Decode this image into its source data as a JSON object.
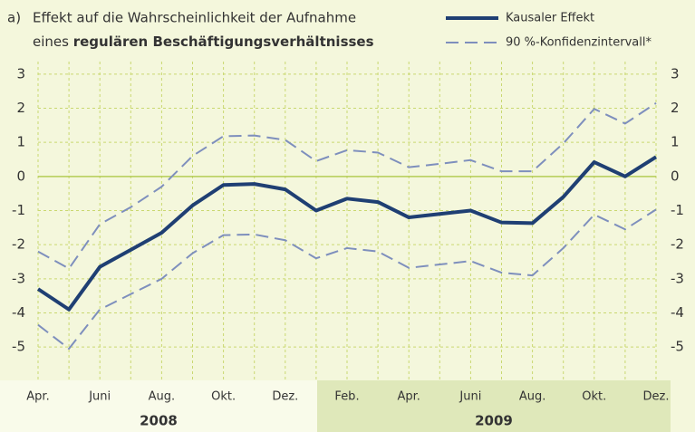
{
  "chart_data": {
    "type": "line",
    "title_prefix": "a)",
    "title_line1": "Effekt auf die Wahrscheinlichkeit der Aufnahme",
    "title_line2": "eines",
    "title_line2_bold": "regulären Beschäftigungsverhältnisses",
    "categories": [
      "Apr.",
      null,
      "Juni",
      null,
      "Aug.",
      null,
      "Okt.",
      null,
      "Dez.",
      null,
      "Feb.",
      null,
      "Apr.",
      null,
      "Juni",
      null,
      "Aug.",
      null,
      "Okt.",
      null,
      "Dez."
    ],
    "years": [
      "2008",
      "2009"
    ],
    "series": [
      {
        "name": "Kausaler Effekt",
        "color": "#1f3f73",
        "style": "solid",
        "values": [
          -3.3,
          -3.9,
          -2.65,
          -2.15,
          -1.65,
          -0.85,
          -0.25,
          -0.22,
          -0.38,
          -1.0,
          -0.65,
          -0.75,
          -1.2,
          -1.1,
          -1.0,
          -1.35,
          -1.37,
          -0.6,
          0.42,
          0.0,
          0.57
        ]
      },
      {
        "name": "90 %-Konfidenzintervall*",
        "color": "#7e8fbd",
        "style": "dashed",
        "values": [
          -2.2,
          -2.7,
          -1.4,
          -0.9,
          -0.3,
          0.6,
          1.18,
          1.2,
          1.07,
          0.45,
          0.77,
          0.7,
          0.27,
          0.37,
          0.48,
          0.15,
          0.15,
          0.97,
          1.98,
          1.55,
          2.15
        ]
      },
      {
        "color": "#7e8fbd",
        "style": "dashed",
        "values": [
          -4.35,
          -5.05,
          -3.9,
          -3.45,
          -3.0,
          -2.25,
          -1.72,
          -1.7,
          -1.87,
          -2.4,
          -2.1,
          -2.2,
          -2.68,
          -2.58,
          -2.48,
          -2.82,
          -2.9,
          -2.1,
          -1.12,
          -1.55,
          -0.97
        ]
      }
    ],
    "ylim": [
      -5.5,
      3.5
    ],
    "yticks": [
      -5,
      -4,
      -3,
      -2,
      -1,
      0,
      1,
      2,
      3
    ],
    "grid": true
  }
}
